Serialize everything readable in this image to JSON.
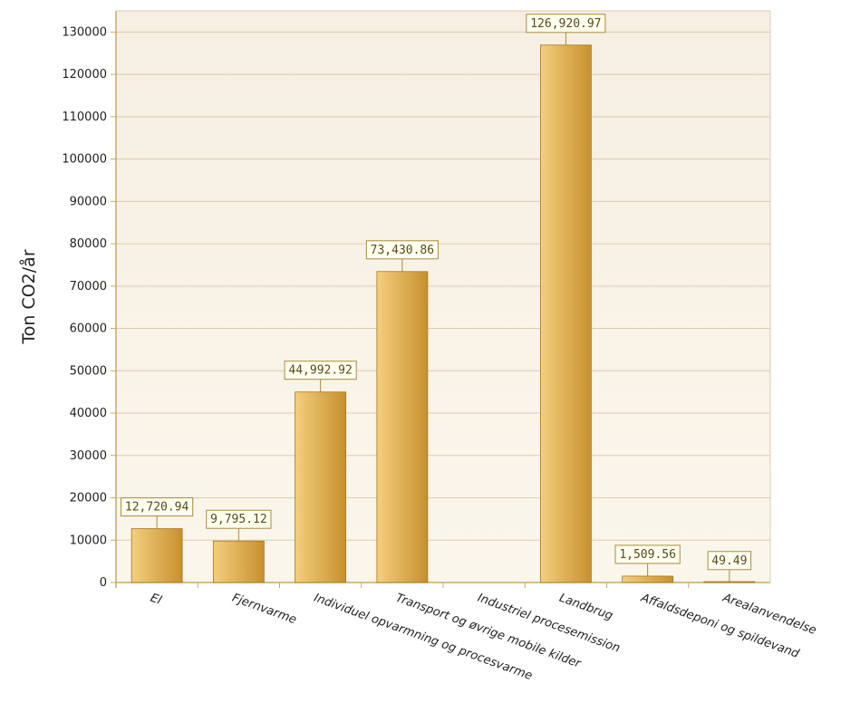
{
  "chart_data": {
    "type": "bar",
    "ylabel": "Ton CO2/år",
    "categories": [
      "El",
      "Fjernvarme",
      "Individuel opvarmning og procesvarme",
      "Transport og øvrige mobile kilder",
      "Industriel procesemission",
      "Landbrug",
      "Affaldsdeponi og spildevand",
      "Arealanvendelse"
    ],
    "values": [
      12720.94,
      9795.12,
      44992.92,
      73430.86,
      0,
      126920.97,
      1509.56,
      49.49
    ],
    "data_labels": [
      "12,720.94",
      "9,795.12",
      "44,992.92",
      "73,430.86",
      "",
      "126,920.97",
      "1,509.56",
      "49.49"
    ],
    "ylim": [
      0,
      135000
    ],
    "yticks": [
      0,
      10000,
      20000,
      30000,
      40000,
      50000,
      60000,
      70000,
      80000,
      90000,
      100000,
      110000,
      120000,
      130000
    ],
    "ytick_labels": [
      "0",
      "10000",
      "20000",
      "30000",
      "40000",
      "50000",
      "60000",
      "70000",
      "80000",
      "90000",
      "100000",
      "110000",
      "120000",
      "130000"
    ],
    "grid": true,
    "colors": {
      "bar_light": "#f3cf7e",
      "bar_dark": "#c7902e",
      "bar_stroke": "#a87620",
      "plot_bg_top": "#f6efe2",
      "plot_bg_bottom": "#fbf6ec",
      "grid": "#d9ccb1",
      "axis": "#c8a96a",
      "label_border": "#a88d3a",
      "label_bg": "#fffff0"
    }
  }
}
